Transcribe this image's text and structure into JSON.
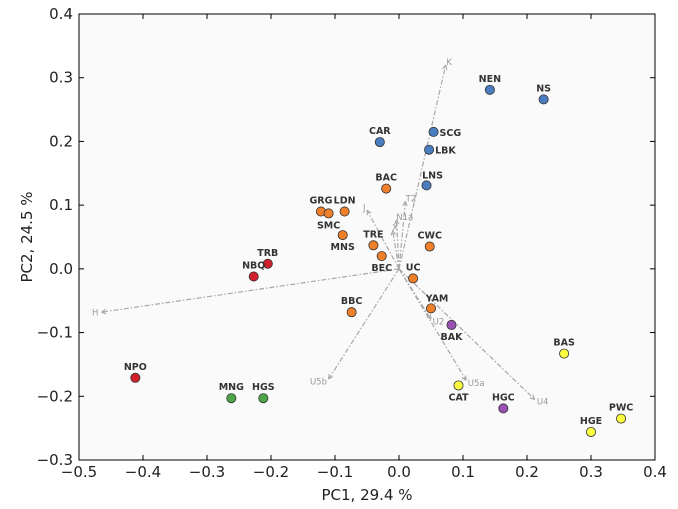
{
  "chart_data": {
    "type": "scatter",
    "title": "",
    "xlabel": "PC1, 29.4 %",
    "ylabel": "PC2, 24.5 %",
    "xlim": [
      -0.5,
      0.4
    ],
    "ylim": [
      -0.3,
      0.4
    ],
    "xticks": [
      -0.5,
      -0.4,
      -0.3,
      -0.2,
      -0.1,
      0.0,
      0.1,
      0.2,
      0.3,
      0.4
    ],
    "xtick_labels": [
      "−0.5",
      "−0.4",
      "−0.3",
      "−0.2",
      "−0.1",
      "0.0",
      "0.1",
      "0.2",
      "0.3",
      "0.4"
    ],
    "yticks": [
      -0.3,
      -0.2,
      -0.1,
      0.0,
      0.1,
      0.2,
      0.3,
      0.4
    ],
    "ytick_labels": [
      "−0.3",
      "−0.2",
      "−0.1",
      "0.0",
      "0.1",
      "0.2",
      "0.3",
      "0.4"
    ],
    "groups": {
      "blue": "#4a7dbf",
      "orange": "#f07f2a",
      "red": "#d21f2c",
      "green": "#4ea64a",
      "purple": "#9a4fb3",
      "yellow": "#fbfb40"
    },
    "points": [
      {
        "label": "NEN",
        "x": 0.142,
        "y": 0.281,
        "group": "blue",
        "pos": "above"
      },
      {
        "label": "NS",
        "x": 0.226,
        "y": 0.266,
        "group": "blue",
        "pos": "above"
      },
      {
        "label": "SCG",
        "x": 0.054,
        "y": 0.215,
        "group": "blue",
        "pos": "right"
      },
      {
        "label": "CAR",
        "x": -0.03,
        "y": 0.199,
        "group": "blue",
        "pos": "above"
      },
      {
        "label": "LBK",
        "x": 0.047,
        "y": 0.187,
        "group": "blue",
        "pos": "right"
      },
      {
        "label": "LNS",
        "x": 0.043,
        "y": 0.131,
        "group": "blue",
        "pos": "aboveright"
      },
      {
        "label": "BAC",
        "x": -0.02,
        "y": 0.126,
        "group": "orange",
        "pos": "above"
      },
      {
        "label": "GRG",
        "x": -0.122,
        "y": 0.09,
        "group": "orange",
        "pos": "above"
      },
      {
        "label": "LDN",
        "x": -0.085,
        "y": 0.09,
        "group": "orange",
        "pos": "above"
      },
      {
        "label": "SMC",
        "x": -0.11,
        "y": 0.087,
        "group": "orange",
        "pos": "below"
      },
      {
        "label": "MNS",
        "x": -0.088,
        "y": 0.053,
        "group": "orange",
        "pos": "below"
      },
      {
        "label": "TRE",
        "x": -0.04,
        "y": 0.037,
        "group": "orange",
        "pos": "above"
      },
      {
        "label": "CWC",
        "x": 0.048,
        "y": 0.035,
        "group": "orange",
        "pos": "above"
      },
      {
        "label": "BEC",
        "x": -0.027,
        "y": 0.02,
        "group": "orange",
        "pos": "below"
      },
      {
        "label": "UC",
        "x": 0.022,
        "y": -0.015,
        "group": "orange",
        "pos": "above"
      },
      {
        "label": "BBC",
        "x": -0.074,
        "y": -0.068,
        "group": "orange",
        "pos": "above"
      },
      {
        "label": "YAM",
        "x": 0.05,
        "y": -0.062,
        "group": "orange",
        "pos": "aboveright"
      },
      {
        "label": "TRB",
        "x": -0.205,
        "y": 0.008,
        "group": "red",
        "pos": "above"
      },
      {
        "label": "NBQ",
        "x": -0.227,
        "y": -0.012,
        "group": "red",
        "pos": "above"
      },
      {
        "label": "NPO",
        "x": -0.412,
        "y": -0.171,
        "group": "red",
        "pos": "above"
      },
      {
        "label": "MNG",
        "x": -0.262,
        "y": -0.203,
        "group": "green",
        "pos": "above"
      },
      {
        "label": "HGS",
        "x": -0.212,
        "y": -0.203,
        "group": "green",
        "pos": "above"
      },
      {
        "label": "BAK",
        "x": 0.082,
        "y": -0.088,
        "group": "purple",
        "pos": "below"
      },
      {
        "label": "HGC",
        "x": 0.163,
        "y": -0.219,
        "group": "purple",
        "pos": "above"
      },
      {
        "label": "BAS",
        "x": 0.258,
        "y": -0.133,
        "group": "yellow",
        "pos": "above"
      },
      {
        "label": "CAT",
        "x": 0.093,
        "y": -0.183,
        "group": "yellow",
        "pos": "below"
      },
      {
        "label": "PWC",
        "x": 0.347,
        "y": -0.235,
        "group": "yellow",
        "pos": "above"
      },
      {
        "label": "HGE",
        "x": 0.3,
        "y": -0.256,
        "group": "yellow",
        "pos": "above"
      }
    ],
    "vectors": [
      {
        "label": "K",
        "x": 0.073,
        "y": 0.32
      },
      {
        "label": "H",
        "x": -0.465,
        "y": -0.068
      },
      {
        "label": "J",
        "x": -0.05,
        "y": 0.092
      },
      {
        "label": "T2",
        "x": 0.01,
        "y": 0.106
      },
      {
        "label": "N1a",
        "x": -0.004,
        "y": 0.077
      },
      {
        "label": "X",
        "x": -0.01,
        "y": 0.06
      },
      {
        "label": "U2",
        "x": 0.05,
        "y": -0.079
      },
      {
        "label": "U5a",
        "x": 0.105,
        "y": -0.175
      },
      {
        "label": "U5b",
        "x": -0.11,
        "y": -0.173
      },
      {
        "label": "U4",
        "x": 0.212,
        "y": -0.205
      }
    ]
  }
}
